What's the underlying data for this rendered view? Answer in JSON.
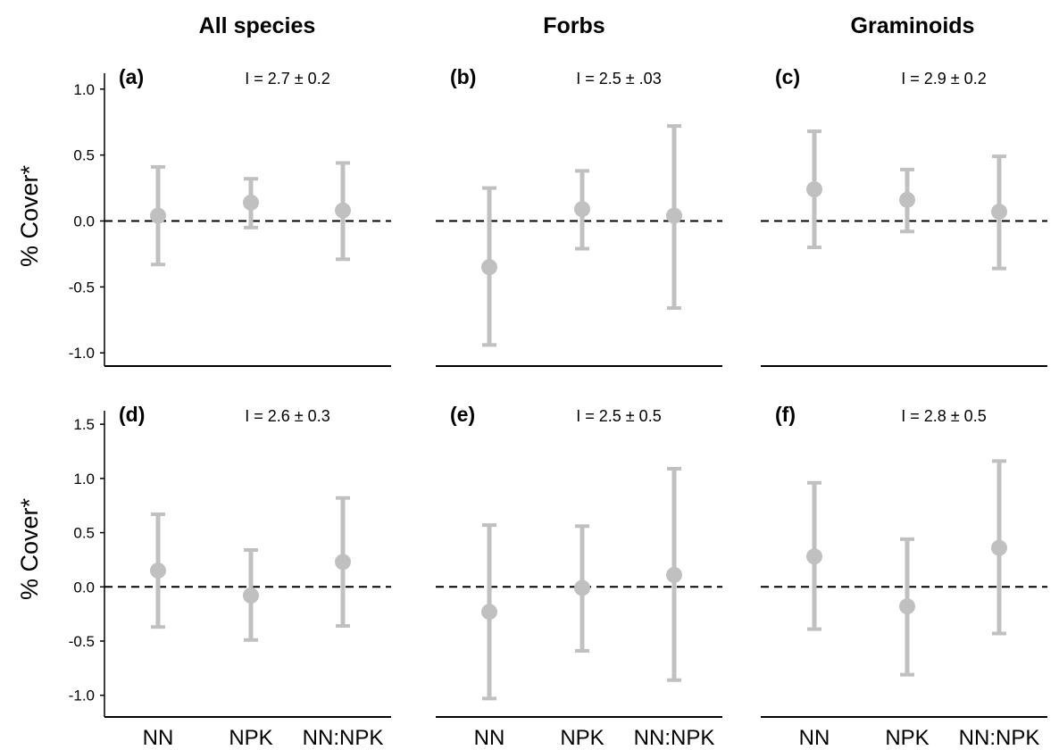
{
  "columns": [
    "All species",
    "Forbs",
    "Graminoids"
  ],
  "categories": [
    "NN",
    "NPK",
    "NN:NPK"
  ],
  "ylabel": "% Cover*",
  "colors": {
    "marker": "#c0c0c0",
    "axis": "#000000",
    "reference_line": "#000000"
  },
  "chart_data": [
    {
      "type": "scatter",
      "panel": "(a)",
      "column": "All species",
      "annotation": "I = 2.7 ± 0.2",
      "ylim": [
        -1.1,
        1.1
      ],
      "yticks": [
        1.0,
        0.5,
        0.0,
        -0.5,
        -1.0
      ],
      "ytick_labels": [
        "1.0",
        "0.5",
        "0.0",
        "-0.5",
        "-1.0"
      ],
      "categories": [
        "NN",
        "NPK",
        "NN:NPK"
      ],
      "values": [
        0.04,
        0.14,
        0.08
      ],
      "lower": [
        -0.33,
        -0.05,
        -0.29
      ],
      "upper": [
        0.41,
        0.32,
        0.44
      ],
      "reference_line": 0
    },
    {
      "type": "scatter",
      "panel": "(b)",
      "column": "Forbs",
      "annotation": "I = 2.5 ± .03",
      "ylim": [
        -1.1,
        1.1
      ],
      "yticks": [
        1.0,
        0.5,
        0.0,
        -0.5,
        -1.0
      ],
      "ytick_labels": [
        "1.0",
        "0.5",
        "0.0",
        "-0.5",
        "-1.0"
      ],
      "categories": [
        "NN",
        "NPK",
        "NN:NPK"
      ],
      "values": [
        -0.35,
        0.09,
        0.04
      ],
      "lower": [
        -0.94,
        -0.21,
        -0.66
      ],
      "upper": [
        0.25,
        0.38,
        0.72
      ],
      "reference_line": 0
    },
    {
      "type": "scatter",
      "panel": "(c)",
      "column": "Graminoids",
      "annotation": "I = 2.9 ± 0.2",
      "ylim": [
        -1.1,
        1.1
      ],
      "yticks": [
        1.0,
        0.5,
        0.0,
        -0.5,
        -1.0
      ],
      "ytick_labels": [
        "1.0",
        "0.5",
        "0.0",
        "-0.5",
        "-1.0"
      ],
      "categories": [
        "NN",
        "NPK",
        "NN:NPK"
      ],
      "values": [
        0.24,
        0.16,
        0.07
      ],
      "lower": [
        -0.2,
        -0.08,
        -0.36
      ],
      "upper": [
        0.68,
        0.39,
        0.49
      ],
      "reference_line": 0
    },
    {
      "type": "scatter",
      "panel": "(d)",
      "column": "All species",
      "annotation": "I = 2.6 ± 0.3",
      "ylim": [
        -1.2,
        1.6
      ],
      "yticks": [
        1.5,
        1.0,
        0.5,
        0.0,
        -0.5,
        -1.0
      ],
      "ytick_labels": [
        "1.5",
        "1.0",
        "0.5",
        "0.0",
        "-0.5",
        "-1.0"
      ],
      "categories": [
        "NN",
        "NPK",
        "NN:NPK"
      ],
      "values": [
        0.15,
        -0.08,
        0.23
      ],
      "lower": [
        -0.37,
        -0.49,
        -0.36
      ],
      "upper": [
        0.67,
        0.34,
        0.82
      ],
      "reference_line": 0
    },
    {
      "type": "scatter",
      "panel": "(e)",
      "column": "Forbs",
      "annotation": "I = 2.5 ± 0.5",
      "ylim": [
        -1.2,
        1.6
      ],
      "yticks": [
        1.5,
        1.0,
        0.5,
        0.0,
        -0.5,
        -1.0
      ],
      "ytick_labels": [
        "1.5",
        "1.0",
        "0.5",
        "0.0",
        "-0.5",
        "-1.0"
      ],
      "categories": [
        "NN",
        "NPK",
        "NN:NPK"
      ],
      "values": [
        -0.23,
        -0.01,
        0.11
      ],
      "lower": [
        -1.03,
        -0.59,
        -0.86
      ],
      "upper": [
        0.57,
        0.56,
        1.09
      ],
      "reference_line": 0
    },
    {
      "type": "scatter",
      "panel": "(f)",
      "column": "Graminoids",
      "annotation": "I = 2.8 ± 0.5",
      "ylim": [
        -1.2,
        1.6
      ],
      "yticks": [
        1.5,
        1.0,
        0.5,
        0.0,
        -0.5,
        -1.0
      ],
      "ytick_labels": [
        "1.5",
        "1.0",
        "0.5",
        "0.0",
        "-0.5",
        "-1.0"
      ],
      "categories": [
        "NN",
        "NPK",
        "NN:NPK"
      ],
      "values": [
        0.28,
        -0.18,
        0.36
      ],
      "lower": [
        -0.39,
        -0.81,
        -0.43
      ],
      "upper": [
        0.96,
        0.44,
        1.16
      ],
      "reference_line": 0
    }
  ]
}
